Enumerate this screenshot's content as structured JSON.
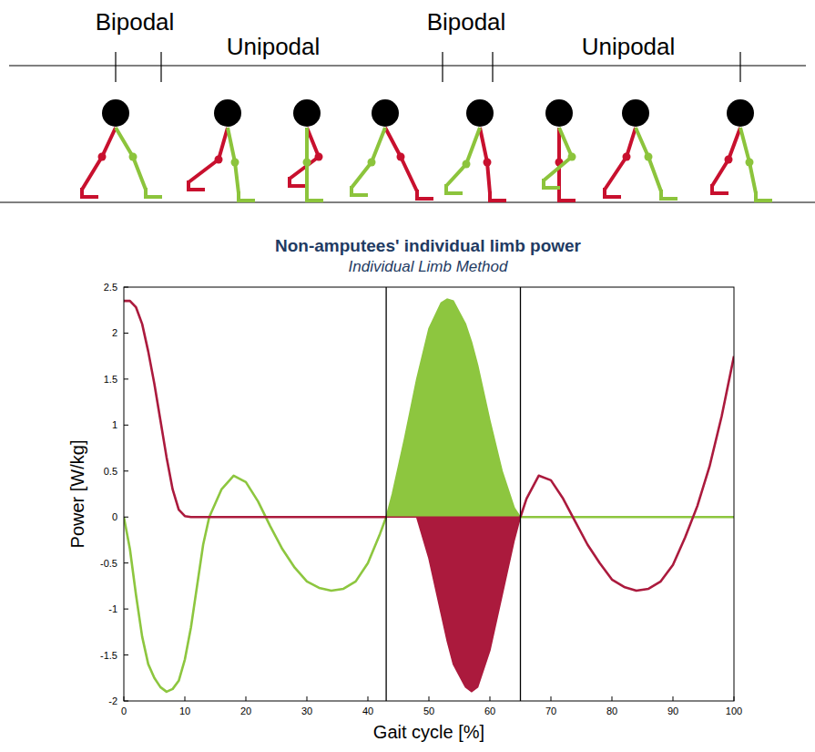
{
  "chart_data": {
    "type": "line",
    "title": "Non-amputees' individual limb power",
    "subtitle": "Individual Limb Method",
    "x_label": "Gait cycle [%]",
    "y_label": "Power [W/kg]",
    "phases": [
      "Bipodal",
      "Unipodal",
      "Bipodal",
      "Unipodal"
    ],
    "xlim": [
      0,
      100
    ],
    "xticks": [
      0,
      10,
      20,
      30,
      40,
      50,
      60,
      70,
      80,
      90,
      100
    ],
    "ylim": [
      -2,
      2.5
    ],
    "yticks": [
      -2,
      -1.5,
      -1,
      -0.5,
      0,
      0.5,
      1,
      1.5,
      2,
      2.5
    ],
    "vlines": [
      43,
      65
    ],
    "grid": false,
    "x": [
      0,
      1,
      2,
      3,
      4,
      5,
      6,
      7,
      8,
      9,
      10,
      11,
      12,
      13,
      14,
      16,
      18,
      20,
      22,
      24,
      26,
      28,
      30,
      32,
      34,
      36,
      38,
      40,
      42,
      43,
      44,
      46,
      48,
      50,
      52,
      53,
      54,
      56,
      57,
      58,
      60,
      62,
      64,
      65,
      66,
      68,
      70,
      72,
      74,
      76,
      78,
      80,
      82,
      84,
      86,
      88,
      90,
      92,
      94,
      96,
      98,
      100
    ],
    "series": [
      {
        "type": "area",
        "color": "#8dc63f",
        "values": [
          null,
          null,
          null,
          null,
          null,
          null,
          null,
          null,
          null,
          null,
          null,
          null,
          null,
          null,
          null,
          null,
          null,
          null,
          null,
          null,
          null,
          null,
          null,
          null,
          null,
          null,
          null,
          null,
          null,
          0,
          0.25,
          0.85,
          1.5,
          2.05,
          2.33,
          2.37,
          2.35,
          2.1,
          1.9,
          1.65,
          1.05,
          0.5,
          0.1,
          0,
          null,
          null,
          null,
          null,
          null,
          null,
          null,
          null,
          null,
          null,
          null,
          null,
          null,
          null,
          null,
          null,
          null,
          null
        ]
      },
      {
        "type": "area",
        "color": "#ab1a3d",
        "values": [
          null,
          null,
          null,
          null,
          null,
          null,
          null,
          null,
          null,
          null,
          null,
          null,
          null,
          null,
          null,
          null,
          null,
          null,
          null,
          null,
          null,
          null,
          null,
          null,
          null,
          null,
          null,
          null,
          null,
          0,
          0,
          0,
          0,
          -0.45,
          -1.05,
          -1.35,
          -1.6,
          -1.85,
          -1.9,
          -1.85,
          -1.45,
          -0.85,
          -0.25,
          0,
          null,
          null,
          null,
          null,
          null,
          null,
          null,
          null,
          null,
          null,
          null,
          null,
          null,
          null,
          null,
          null,
          null,
          null
        ]
      },
      {
        "type": "line",
        "color": "#8dc63f",
        "values": [
          0,
          -0.35,
          -0.85,
          -1.3,
          -1.6,
          -1.75,
          -1.85,
          -1.9,
          -1.87,
          -1.78,
          -1.55,
          -1.2,
          -0.75,
          -0.3,
          0,
          0.3,
          0.45,
          0.38,
          0.17,
          -0.1,
          -0.35,
          -0.55,
          -0.7,
          -0.77,
          -0.8,
          -0.78,
          -0.7,
          -0.5,
          -0.18,
          0,
          null,
          null,
          null,
          null,
          null,
          null,
          null,
          null,
          null,
          null,
          null,
          null,
          null,
          0,
          0,
          0,
          0,
          0,
          0,
          0,
          0,
          0,
          0,
          0,
          0,
          0,
          0,
          0,
          0,
          0,
          0,
          0
        ]
      },
      {
        "type": "line",
        "color": "#ab1a3d",
        "values": [
          2.35,
          2.35,
          2.28,
          2.1,
          1.8,
          1.45,
          1.05,
          0.65,
          0.3,
          0.08,
          0.01,
          0,
          0,
          0,
          0,
          0,
          0,
          0,
          0,
          0,
          0,
          0,
          0,
          0,
          0,
          0,
          0,
          0,
          0,
          0,
          null,
          null,
          null,
          null,
          null,
          null,
          null,
          null,
          null,
          null,
          null,
          null,
          null,
          0,
          0.2,
          0.45,
          0.4,
          0.2,
          -0.05,
          -0.3,
          -0.5,
          -0.68,
          -0.76,
          -0.8,
          -0.78,
          -0.7,
          -0.52,
          -0.22,
          0.12,
          0.55,
          1.1,
          1.75
        ]
      }
    ]
  }
}
